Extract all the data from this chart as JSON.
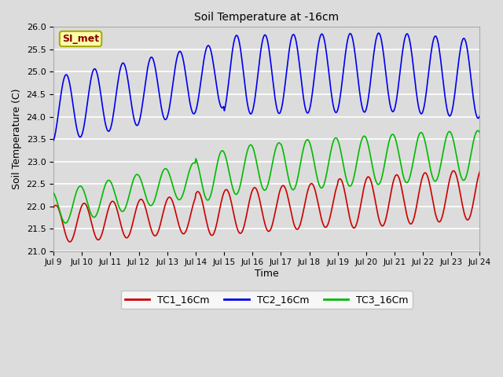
{
  "title": "Soil Temperature at -16cm",
  "xlabel": "Time",
  "ylabel": "Soil Temperature (C)",
  "ylim": [
    21.0,
    26.0
  ],
  "yticks": [
    21.0,
    21.5,
    22.0,
    22.5,
    23.0,
    23.5,
    24.0,
    24.5,
    25.0,
    25.5,
    26.0
  ],
  "xtick_labels": [
    "Jul 9",
    "Jul 10",
    "Jul 11",
    "Jul 12",
    "Jul 13",
    "Jul 14",
    "Jul 15",
    "Jul 16",
    "Jul 17",
    "Jul 18",
    "Jul 19",
    "Jul 20",
    "Jul 21",
    "Jul 22",
    "Jul 23",
    "Jul 24"
  ],
  "bg_color": "#dcdcdc",
  "plot_bg_color": "#dcdcdc",
  "grid_color": "#ffffff",
  "legend_label_box": "SI_met",
  "legend_box_bg": "#ffffaa",
  "legend_box_edge": "#aaaa00",
  "legend_box_text_color": "#880000",
  "tc1_color": "#cc0000",
  "tc2_color": "#0000ee",
  "tc3_color": "#00bb00",
  "line_width": 1.2,
  "n_points": 600
}
